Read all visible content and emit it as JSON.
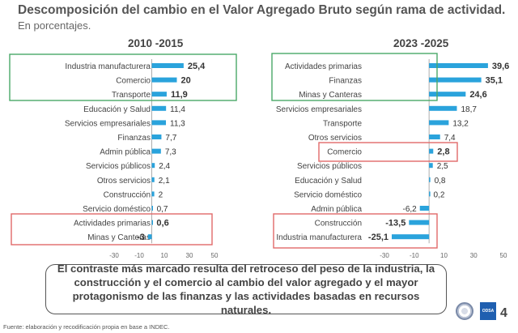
{
  "header": {
    "title": "Descomposición del cambio en el Valor Agregado Bruto según rama de actividad.",
    "subtitle": "En porcentajes."
  },
  "chart_data": [
    {
      "type": "bar",
      "orientation": "horizontal",
      "title": "2010 -2015",
      "categories": [
        "Industria manufacturera",
        "Comercio",
        "Transporte",
        "Educación y Salud",
        "Servicios empresariales",
        "Finanzas",
        "Admin pública",
        "Servicios públicos",
        "Otros servicios",
        "Construcción",
        "Servicio doméstico",
        "Actividades primarias",
        "Minas y Canteras"
      ],
      "values": [
        25.4,
        20,
        11.9,
        11.4,
        11.3,
        7.7,
        7.3,
        2.4,
        2.1,
        2,
        0.7,
        0.6,
        -3
      ],
      "value_labels": [
        "25,4",
        "20",
        "11,9",
        "11,4",
        "11,3",
        "7,7",
        "7,3",
        "2,4",
        "2,1",
        "2",
        "0,7",
        "0,6",
        "-3"
      ],
      "bold_labels": [
        true,
        true,
        true,
        false,
        false,
        false,
        false,
        false,
        false,
        false,
        false,
        true,
        true
      ],
      "xlim": [
        -30,
        50
      ],
      "xticks": [
        "-30",
        "-10",
        "10",
        "30",
        "50"
      ],
      "highlight_green": [
        "Industria manufacturera",
        "Comercio",
        "Transporte"
      ],
      "highlight_red": [
        "Actividades primarias",
        "Minas y Canteras"
      ]
    },
    {
      "type": "bar",
      "orientation": "horizontal",
      "title": "2023 -2025",
      "categories": [
        "Actividades primarias",
        "Finanzas",
        "Minas y Canteras",
        "Servicios empresariales",
        "Transporte",
        "Otros servicios",
        "Comercio",
        "Servicios públicos",
        "Educación y Salud",
        "Servicio doméstico",
        "Admin pública",
        "Construcción",
        "Industria manufacturera"
      ],
      "values": [
        39.6,
        35.1,
        24.6,
        18.7,
        13.2,
        7.4,
        2.8,
        2.5,
        0.8,
        0.2,
        -6.2,
        -13.5,
        -25.1
      ],
      "value_labels": [
        "39,6",
        "35,1",
        "24,6",
        "18,7",
        "13,2",
        "7,4",
        "2,8",
        "2,5",
        "0,8",
        "0,2",
        "-6,2",
        "-13,5",
        "-25,1"
      ],
      "bold_labels": [
        true,
        true,
        true,
        false,
        false,
        false,
        true,
        false,
        false,
        false,
        false,
        true,
        true
      ],
      "xlim": [
        -30,
        50
      ],
      "xticks": [
        "-30",
        "-10",
        "10",
        "30",
        "50"
      ],
      "highlight_green": [
        "Actividades primarias",
        "Finanzas",
        "Minas y Canteras"
      ],
      "highlight_red": [
        "Comercio",
        "Construcción",
        "Industria manufacturera"
      ]
    }
  ],
  "colors": {
    "bar": "#2aa3dc",
    "green_box": "#49a868",
    "red_box": "#e06a6a",
    "axis": "#999999"
  },
  "callout": "El contraste más marcado resulta del retroceso del peso de la industria, la construcción y el comercio al cambio del valor agregado y el mayor protagonismo de las finanzas y las actividades basadas en recursos naturales.",
  "footer": {
    "source": "Fuente: elaboración y recodificación propia en base a INDEC.",
    "page_number": "4",
    "logo_text": "ODSA"
  }
}
